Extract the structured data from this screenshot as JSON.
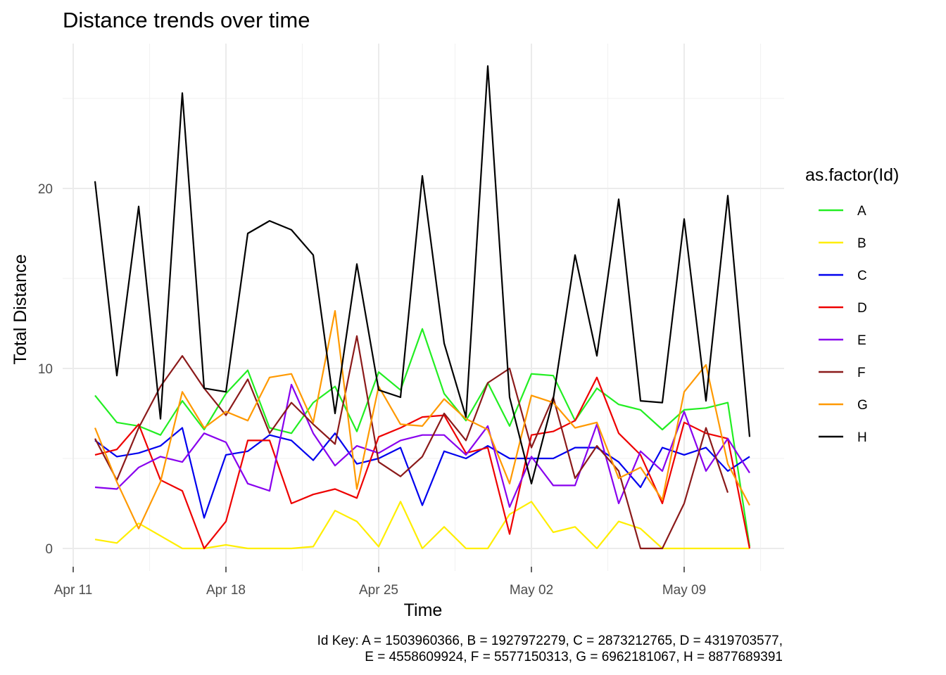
{
  "chart_data": {
    "type": "line",
    "title": "Distance trends over time",
    "xlabel": "Time",
    "ylabel": "Total Distance",
    "x_tick_labels": [
      "Apr 11",
      "Apr 18",
      "Apr 25",
      "May 02",
      "May 09"
    ],
    "y_tick_labels": [
      "0",
      "10",
      "20"
    ],
    "ylim": [
      -1.3,
      28.5
    ],
    "x_start": "2016-04-12",
    "x": [
      "2016-04-12",
      "2016-04-13",
      "2016-04-14",
      "2016-04-15",
      "2016-04-16",
      "2016-04-17",
      "2016-04-18",
      "2016-04-19",
      "2016-04-20",
      "2016-04-21",
      "2016-04-22",
      "2016-04-23",
      "2016-04-24",
      "2016-04-25",
      "2016-04-26",
      "2016-04-27",
      "2016-04-28",
      "2016-04-29",
      "2016-04-30",
      "2016-05-01",
      "2016-05-02",
      "2016-05-03",
      "2016-05-04",
      "2016-05-05",
      "2016-05-06",
      "2016-05-07",
      "2016-05-08",
      "2016-05-09",
      "2016-05-10",
      "2016-05-11",
      "2016-05-12"
    ],
    "legend_title": "as.factor(Id)",
    "legend_position": "right",
    "series": [
      {
        "name": "A",
        "color": "#22ee22",
        "values": [
          8.5,
          7.0,
          6.8,
          6.3,
          8.2,
          6.6,
          8.6,
          9.9,
          6.7,
          6.4,
          8.1,
          9.0,
          6.5,
          9.8,
          8.8,
          12.2,
          8.6,
          7.1,
          9.2,
          6.8,
          9.7,
          9.6,
          7.1,
          8.9,
          8.0,
          7.7,
          6.6,
          7.7,
          7.8,
          8.1,
          0.1
        ]
      },
      {
        "name": "B",
        "color": "#ffee00",
        "values": [
          0.5,
          0.3,
          1.4,
          0.7,
          0.0,
          0.0,
          0.2,
          0.0,
          0.0,
          0.0,
          0.1,
          2.1,
          1.5,
          0.1,
          2.6,
          0.0,
          1.2,
          0.0,
          0.0,
          1.9,
          2.6,
          0.9,
          1.2,
          0.0,
          1.5,
          1.1,
          0.0,
          0.0,
          0.0,
          0.0,
          0.0
        ]
      },
      {
        "name": "C",
        "color": "#0000ee",
        "values": [
          6.0,
          5.1,
          5.3,
          5.7,
          6.7,
          1.7,
          5.2,
          5.4,
          6.3,
          6.0,
          4.9,
          6.4,
          4.7,
          5.0,
          5.6,
          2.4,
          5.4,
          5.0,
          5.7,
          5.0,
          5.0,
          5.0,
          5.6,
          5.6,
          4.8,
          3.4,
          5.6,
          5.2,
          5.6,
          4.3,
          5.1
        ]
      },
      {
        "name": "D",
        "color": "#ee0000",
        "values": [
          5.2,
          5.5,
          6.9,
          3.8,
          3.2,
          0.0,
          1.5,
          6.0,
          6.0,
          2.5,
          3.0,
          3.3,
          2.8,
          6.2,
          6.7,
          7.3,
          7.4,
          5.3,
          5.6,
          0.8,
          6.3,
          6.5,
          7.1,
          9.5,
          6.4,
          5.2,
          2.5,
          7.0,
          6.4,
          6.1,
          0.0
        ]
      },
      {
        "name": "E",
        "color": "#8800ee",
        "values": [
          3.4,
          3.3,
          4.5,
          5.1,
          4.8,
          6.4,
          5.9,
          3.6,
          3.2,
          9.1,
          6.4,
          4.6,
          5.7,
          5.3,
          6.0,
          6.3,
          6.3,
          5.2,
          6.8,
          2.3,
          5.1,
          3.5,
          3.5,
          6.9,
          2.5,
          5.4,
          4.3,
          7.6,
          4.3,
          6.1,
          4.2
        ]
      },
      {
        "name": "F",
        "color": "#8b1a1a",
        "values": [
          6.1,
          3.8,
          6.7,
          9.0,
          10.7,
          8.9,
          7.4,
          9.4,
          6.4,
          8.1,
          6.9,
          5.8,
          11.8,
          4.8,
          4.0,
          5.1,
          7.5,
          6.0,
          9.2,
          10.0,
          5.6,
          8.4,
          3.9,
          5.7,
          4.3,
          0.0,
          0.0,
          2.5,
          6.7,
          3.1,
          null
        ]
      },
      {
        "name": "G",
        "color": "#ff9900",
        "values": [
          6.7,
          3.7,
          1.1,
          3.7,
          8.7,
          6.7,
          7.6,
          7.1,
          9.5,
          9.7,
          7.0,
          13.2,
          3.3,
          9.0,
          6.9,
          6.8,
          8.3,
          7.2,
          6.6,
          3.6,
          8.5,
          8.1,
          6.7,
          7.0,
          3.9,
          4.5,
          2.7,
          8.7,
          10.2,
          4.7,
          2.4
        ]
      },
      {
        "name": "H",
        "color": "#000000",
        "values": [
          20.4,
          9.6,
          19.0,
          7.2,
          25.3,
          8.9,
          8.7,
          17.5,
          18.2,
          17.7,
          16.3,
          7.5,
          15.8,
          8.8,
          8.4,
          20.7,
          11.4,
          7.3,
          26.8,
          8.4,
          3.6,
          8.3,
          16.3,
          10.7,
          19.4,
          8.2,
          8.1,
          18.3,
          8.2,
          19.6,
          6.2
        ]
      }
    ]
  },
  "caption": {
    "line1": "Id Key: A = 1503960366, B = 1927972279, C = 2873212765, D = 4319703577,",
    "line2": "E = 4558609924, F = 5577150313, G = 6962181067, H = 8877689391"
  }
}
